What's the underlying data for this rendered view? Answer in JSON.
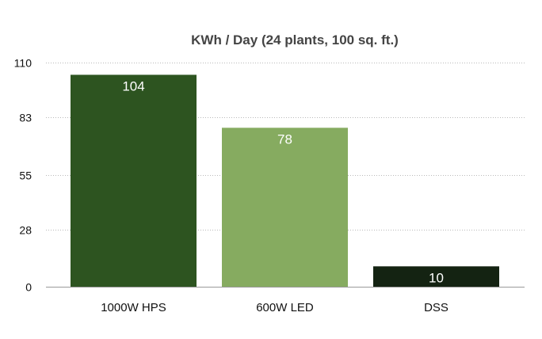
{
  "chart_data": {
    "type": "bar",
    "title": "KWh / Day (24 plants, 100 sq. ft.)",
    "xlabel": "",
    "ylabel": "",
    "categories": [
      "1000W HPS",
      "600W LED",
      "DSS"
    ],
    "values": [
      104,
      78,
      10
    ],
    "data_labels": [
      "104",
      "78",
      "10"
    ],
    "y_ticks": [
      0,
      28,
      55,
      83,
      110
    ],
    "ylim": [
      0,
      110
    ],
    "grid": true,
    "legend": "none",
    "colors": [
      "#2d5420",
      "#86ab60",
      "#142312"
    ]
  }
}
